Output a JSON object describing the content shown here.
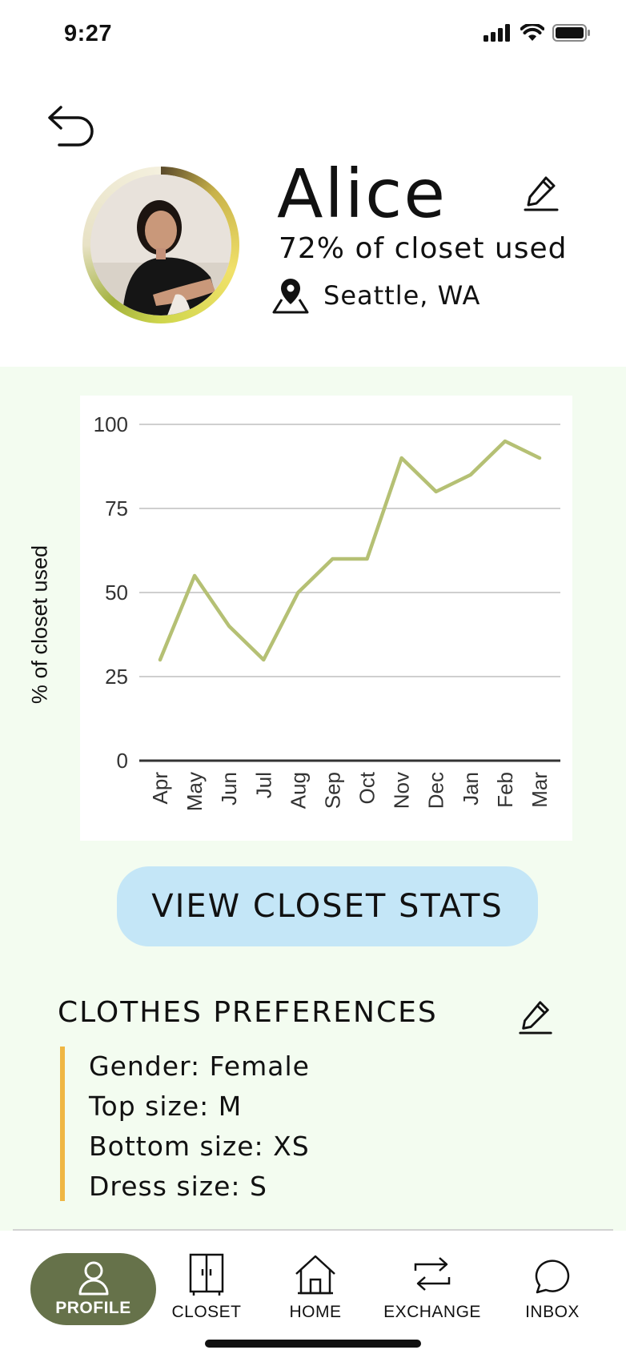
{
  "status_bar": {
    "time": "9:27"
  },
  "profile": {
    "name": "Alice",
    "closet_used": "72% of closet used",
    "location": "Seattle, WA"
  },
  "chart_data": {
    "type": "line",
    "title": "",
    "xlabel": "",
    "ylabel": "% of closet used",
    "categories": [
      "Apr",
      "May",
      "Jun",
      "Jul",
      "Aug",
      "Sep",
      "Oct",
      "Nov",
      "Dec",
      "Jan",
      "Feb",
      "Mar"
    ],
    "values": [
      30,
      55,
      40,
      30,
      50,
      60,
      60,
      90,
      80,
      85,
      95,
      90
    ],
    "y_ticks": [
      0,
      25,
      50,
      75,
      100
    ],
    "ylim": [
      0,
      100
    ],
    "grid": true,
    "line_color": "#b5c074"
  },
  "stats_button": {
    "label": "VIEW CLOSET STATS"
  },
  "preferences": {
    "title": "CLOTHES PREFERENCES",
    "items": [
      "Gender: Female",
      "Top size: M",
      "Bottom size: XS",
      "Dress size: S"
    ],
    "accent_color": "#efb643"
  },
  "tabs": [
    {
      "label": "PROFILE",
      "icon": "person-icon",
      "active": true
    },
    {
      "label": "CLOSET",
      "icon": "wardrobe-icon"
    },
    {
      "label": "HOME",
      "icon": "home-icon"
    },
    {
      "label": "EXCHANGE",
      "icon": "exchange-arrows-icon"
    },
    {
      "label": "INBOX",
      "icon": "chat-bubble-icon"
    }
  ],
  "colors": {
    "section_bg": "#f3fcf0",
    "button_bg": "#c4e6f7",
    "active_tab_bg": "#66724a"
  }
}
